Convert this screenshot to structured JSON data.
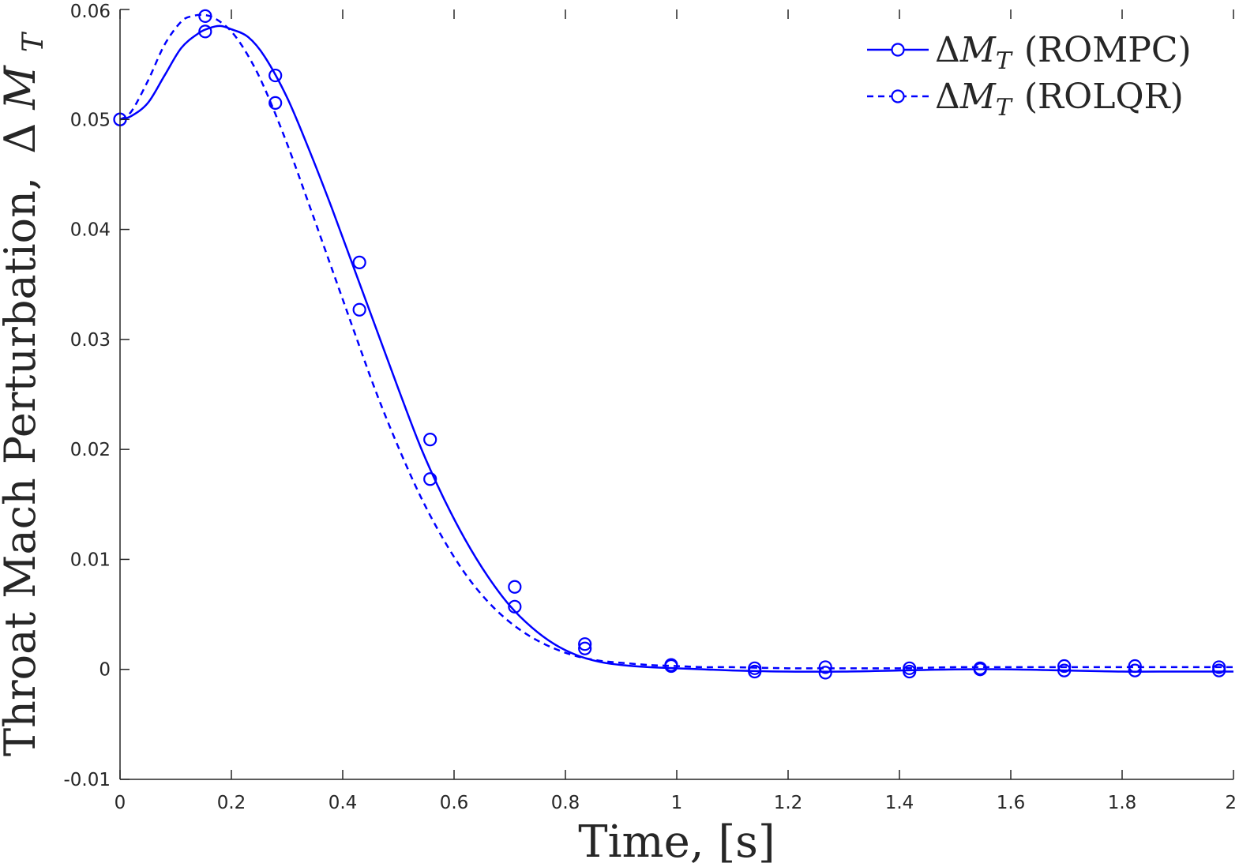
{
  "chart_data": {
    "type": "line",
    "title": "",
    "xlabel": "Time, [s]",
    "ylabel_text": "Throat Mach Perturbation,",
    "ylabel_symbol_prefix": "Δ",
    "ylabel_symbol_main": "M",
    "ylabel_symbol_sub": "T",
    "xlim": [
      0,
      2
    ],
    "ylim": [
      -0.01,
      0.06
    ],
    "xticks": [
      0,
      0.2,
      0.4,
      0.6,
      0.8,
      1,
      1.2,
      1.4,
      1.6,
      1.8,
      2
    ],
    "xtick_labels": [
      "0",
      "0.2",
      "0.4",
      "0.6",
      "0.8",
      "1",
      "1.2",
      "1.4",
      "1.6",
      "1.8",
      "2"
    ],
    "yticks": [
      -0.01,
      0,
      0.01,
      0.02,
      0.03,
      0.04,
      0.05,
      0.06
    ],
    "ytick_labels": [
      "-0.01",
      "0",
      "0.01",
      "0.02",
      "0.03",
      "0.04",
      "0.05",
      "0.06"
    ],
    "grid": false,
    "legend_position": "top-right",
    "color": "#0000ff",
    "series": [
      {
        "name": "(ROMPC)",
        "symbol_prefix": "Δ",
        "symbol_main": "M",
        "symbol_sub": "T",
        "line_style": "solid",
        "x": [
          0,
          0.02,
          0.05,
          0.08,
          0.11,
          0.14,
          0.16,
          0.18,
          0.2,
          0.23,
          0.26,
          0.3,
          0.34,
          0.38,
          0.42,
          0.46,
          0.5,
          0.54,
          0.58,
          0.62,
          0.66,
          0.7,
          0.74,
          0.78,
          0.82,
          0.86,
          0.9,
          0.95,
          1.0,
          1.05,
          1.1,
          1.2,
          1.3,
          1.4,
          1.5,
          1.6,
          1.7,
          1.8,
          1.9,
          2.0
        ],
        "y": [
          0.05,
          0.0503,
          0.0515,
          0.054,
          0.0565,
          0.0578,
          0.0583,
          0.0585,
          0.0582,
          0.0575,
          0.0557,
          0.052,
          0.0472,
          0.042,
          0.0365,
          0.031,
          0.0255,
          0.0202,
          0.0157,
          0.0118,
          0.0085,
          0.0058,
          0.0038,
          0.0023,
          0.0013,
          0.0007,
          0.0004,
          0.0002,
          0.0001,
          0.0,
          -0.0001,
          -0.0002,
          -0.0002,
          -0.0001,
          0.0,
          0.0,
          -0.0001,
          -0.0002,
          -0.0002,
          -0.0002
        ],
        "marker_x": [
          0,
          0.153,
          0.279,
          0.43,
          0.557,
          0.709,
          0.835,
          0.99,
          1.14,
          1.267,
          1.418,
          1.545,
          1.696,
          1.823,
          1.974
        ],
        "marker_y": [
          0.05,
          0.058,
          0.054,
          0.037,
          0.0209,
          0.0075,
          0.0023,
          0.0003,
          -0.0002,
          -0.0003,
          -0.0002,
          0.0,
          -0.0001,
          -0.0001,
          -0.0001
        ]
      },
      {
        "name": "(ROLQR)",
        "symbol_prefix": "Δ",
        "symbol_main": "M",
        "symbol_sub": "T",
        "line_style": "dashed",
        "x": [
          0,
          0.02,
          0.05,
          0.08,
          0.11,
          0.13,
          0.15,
          0.17,
          0.2,
          0.23,
          0.26,
          0.3,
          0.34,
          0.38,
          0.42,
          0.46,
          0.5,
          0.54,
          0.58,
          0.62,
          0.66,
          0.7,
          0.74,
          0.78,
          0.82,
          0.86,
          0.9,
          0.95,
          1.0,
          1.05,
          1.1,
          1.2,
          1.3,
          1.4,
          1.5,
          1.6,
          1.7,
          1.8,
          1.9,
          2.0
        ],
        "y": [
          0.05,
          0.0507,
          0.0535,
          0.0568,
          0.0589,
          0.0594,
          0.0595,
          0.0592,
          0.058,
          0.0558,
          0.0528,
          0.0478,
          0.0422,
          0.0365,
          0.0308,
          0.0252,
          0.0202,
          0.0157,
          0.0119,
          0.0087,
          0.0062,
          0.0043,
          0.0029,
          0.0019,
          0.0012,
          0.0008,
          0.0006,
          0.0004,
          0.0003,
          0.0002,
          0.0002,
          0.0001,
          0.0001,
          0.0001,
          0.0002,
          0.0002,
          0.0002,
          0.0002,
          0.0002,
          0.0002
        ],
        "marker_x": [
          0,
          0.153,
          0.279,
          0.43,
          0.557,
          0.709,
          0.835,
          0.99,
          1.14,
          1.267,
          1.418,
          1.545,
          1.696,
          1.823,
          1.974
        ],
        "marker_y": [
          0.05,
          0.0594,
          0.0515,
          0.0327,
          0.0173,
          0.0057,
          0.0019,
          0.0004,
          0.0001,
          0.0002,
          0.0001,
          0.0001,
          0.0003,
          0.0003,
          0.0002
        ]
      }
    ]
  }
}
